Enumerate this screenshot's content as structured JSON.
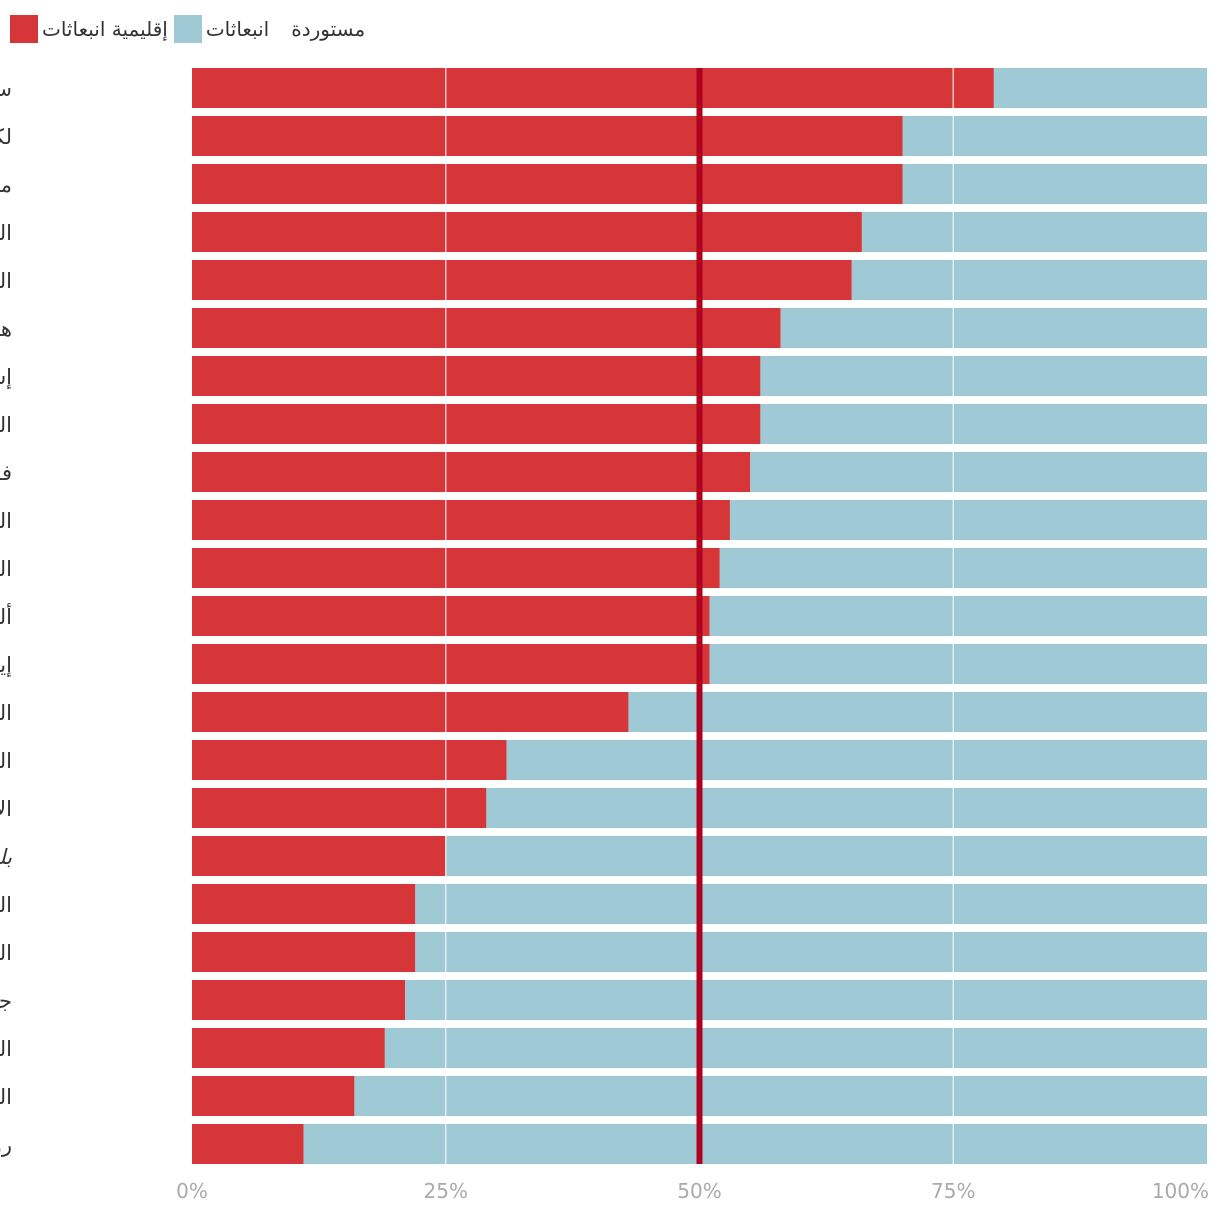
{
  "legend": {
    "regional_label": "إقليمية انبعاثات",
    "imported_label_1": "انبعاثات",
    "imported_label_2": "مستوردة"
  },
  "colors": {
    "regional": "#d63638",
    "imported": "#a0c9d6",
    "reference_line": "#b00020",
    "gridline": "#ffffff",
    "label_text": "#333333",
    "tick_text": "#aaaaaa"
  },
  "chart_data": {
    "type": "bar",
    "orientation": "horizontal",
    "stacked": true,
    "normalized_percent": true,
    "categories": [
      "سويسرا",
      "لكسمبورغ",
      "مالطا",
      "النرويج",
      "السويد",
      "هولاندا",
      "إسبانيا",
      "البرتغال",
      "فرنسا",
      "المجر",
      "المملكة المتحدة",
      "ألمانيا",
      "إيطاليا",
      "اليابان",
      "المكسيك",
      "الإمارات العربية",
      "بلدان أخرى",
      "الهند",
      "العربية السعودية",
      "جنوب أفريقيا",
      "البرازيل",
      "الصين",
      "روسيا"
    ],
    "italic_categories": [
      "بلدان أخرى"
    ],
    "series": [
      {
        "name": "إقليمية انبعاثات",
        "values": [
          79,
          70,
          70,
          66,
          65,
          58,
          56,
          56,
          55,
          53,
          52,
          51,
          51,
          43,
          31,
          29,
          25,
          22,
          22,
          21,
          19,
          16,
          11
        ]
      },
      {
        "name": "انبعاثات مستوردة",
        "values": [
          21,
          30,
          30,
          34,
          35,
          42,
          44,
          44,
          45,
          47,
          48,
          49,
          49,
          57,
          69,
          71,
          75,
          78,
          78,
          79,
          81,
          84,
          89
        ]
      }
    ],
    "xlim": [
      0,
      100
    ],
    "xticks": [
      0,
      25,
      50,
      75,
      100
    ],
    "xtick_labels": [
      "0%",
      "25%",
      "50%",
      "75%",
      "100%"
    ],
    "reference_line": 50,
    "grid": true,
    "legend_position": "top-left"
  }
}
